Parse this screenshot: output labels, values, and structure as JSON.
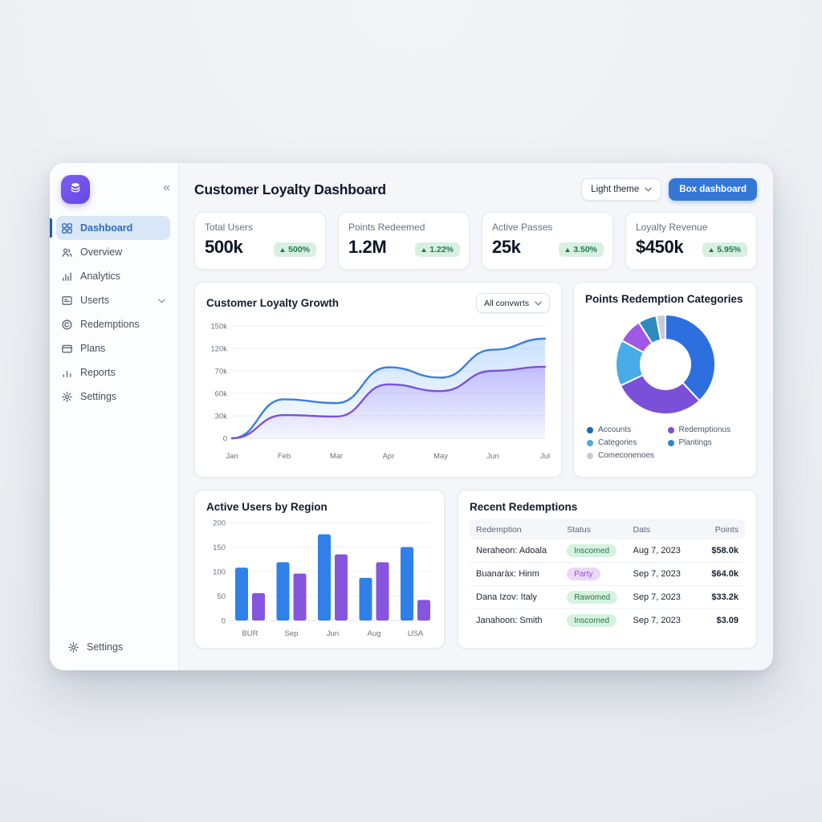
{
  "colors": {
    "accent_blue": "#3477d6",
    "logo_purple": "#6d51e8",
    "active_nav_bg": "#d9e7f8",
    "active_nav_text": "#2e6cb4",
    "green_badge_bg": "#d8f0e1",
    "green_badge_text": "#1f7a4d",
    "purple_badge_bg": "#ead9f9",
    "purple_badge_text": "#9a4fd9",
    "line_blue": "#3b7de2",
    "line_purple": "#7c52d9",
    "bar_blue": "#2f80e8",
    "bar_purple": "#8655dd"
  },
  "sidebar": {
    "logo_icon": "layers-icon",
    "collapse_glyph": "«",
    "nav": [
      {
        "label": "Dashboard",
        "icon": "grid",
        "active": true
      },
      {
        "label": "Overview",
        "icon": "users",
        "active": false
      },
      {
        "label": "Analytics",
        "icon": "bar-chart",
        "active": false
      },
      {
        "label": "Userts",
        "icon": "id-card",
        "active": false,
        "chevron": true
      },
      {
        "label": "Redemptions",
        "icon": "copyright",
        "active": false
      },
      {
        "label": "Plans",
        "icon": "credit-card",
        "active": false
      },
      {
        "label": "Reports",
        "icon": "report-bars",
        "active": false
      },
      {
        "label": "Settings",
        "icon": "gear",
        "active": false
      }
    ],
    "footer": {
      "label": "Settings",
      "icon": "gear"
    }
  },
  "header": {
    "title": "Customer Loyalty Dashboard",
    "theme_select_value": "Light theme",
    "primary_button_label": "Box dashboard"
  },
  "stats": [
    {
      "label": "Total Users",
      "value": "500k",
      "delta": "500%",
      "direction": "up"
    },
    {
      "label": "Points Redeemed",
      "value": "1.2M",
      "delta": "1.22%",
      "direction": "up"
    },
    {
      "label": "Active Passes",
      "value": "25k",
      "delta": "3.50%",
      "direction": "up"
    },
    {
      "label": "Loyalty Revenue",
      "value": "$450k",
      "delta": "5.95%",
      "direction": "up"
    }
  ],
  "chart_data": [
    {
      "type": "area",
      "title": "Customer Loyalty Growth",
      "filter_label": "All convwrts",
      "x": [
        "Jan",
        "Feb",
        "Mar",
        "Apr",
        "May",
        "Jun",
        "Jul"
      ],
      "y_ticks": [
        "150k",
        "120k",
        "70k",
        "60k",
        "30k",
        "0"
      ],
      "y_tick_values": [
        150,
        120,
        70,
        60,
        30,
        0
      ],
      "grid": true,
      "legend_position": "none",
      "series": [
        {
          "name": "upper-blue",
          "color": "#3b7de2",
          "fill_top": "rgba(96,165,250,0.32)",
          "fill_bottom": "rgba(96,165,250,0.03)",
          "values": [
            0,
            52,
            47,
            78,
            67,
            117,
            133
          ]
        },
        {
          "name": "lower-purple",
          "color": "#7c52d9",
          "fill_top": "rgba(139,92,246,0.30)",
          "fill_bottom": "rgba(139,92,246,0.03)",
          "values": [
            0,
            31,
            29,
            64,
            61,
            70,
            79
          ]
        }
      ]
    },
    {
      "type": "pie",
      "title": "Points Redemption Categories",
      "donut": true,
      "slices": [
        {
          "label": "Accounts",
          "value": 38,
          "color": "#2e6fe0"
        },
        {
          "label": "Redemptionus",
          "value": 30,
          "color": "#7b50d8"
        },
        {
          "label": "Categories",
          "value": 15,
          "color": "#47ace8"
        },
        {
          "label": "",
          "value": 8,
          "color": "#a158e6"
        },
        {
          "label": "Plantings",
          "value": 6,
          "color": "#2e8abf"
        },
        {
          "label": "Comeconenoes",
          "value": 3,
          "color": "#c5ccd8"
        }
      ],
      "legend": [
        {
          "label": "Accounts",
          "color": "#1e63cf"
        },
        {
          "label": "Redemptionus",
          "color": "#7b50d8"
        },
        {
          "label": "Categories",
          "color": "#47ace8"
        },
        {
          "label": "Plantings",
          "color": "#2e8abf"
        },
        {
          "label": "Comeconenoes",
          "color": "#c5ccd8"
        }
      ],
      "legend_position": "bottom"
    },
    {
      "type": "bar",
      "title": "Active Users by Region",
      "categories": [
        "BUR",
        "Sep",
        "Jun",
        "Aug",
        "USA"
      ],
      "y_ticks": [
        200,
        150,
        100,
        50,
        0
      ],
      "ylim": [
        0,
        200
      ],
      "grid": true,
      "series": [
        {
          "name": "blue",
          "color": "#2f80e8",
          "values": [
            108,
            119,
            176,
            87,
            150
          ]
        },
        {
          "name": "purple",
          "color": "#8655dd",
          "values": [
            56,
            96,
            135,
            119,
            42
          ]
        }
      ]
    },
    {
      "type": "table",
      "title": "Recent Redemptions",
      "columns": [
        "Redemption",
        "Status",
        "Dats",
        "Points"
      ],
      "rows": [
        {
          "redemption": "Neraheon: Adoala",
          "status": "Inscorned",
          "status_variant": "green",
          "date": "Aug 7, 2023",
          "points": "$58.0k"
        },
        {
          "redemption": "Buanaràx: Hinm",
          "status": "Party",
          "status_variant": "purple",
          "date": "Sep 7, 2023",
          "points": "$64.0k"
        },
        {
          "redemption": "Dana Izov: Italy",
          "status": "Rawomed",
          "status_variant": "green",
          "date": "Sep 7, 2023",
          "points": "$33.2k"
        },
        {
          "redemption": "Janahoon: Smith",
          "status": "Inscorned",
          "status_variant": "green",
          "date": "Sep 7, 2023",
          "points": "$3.09"
        }
      ]
    }
  ]
}
